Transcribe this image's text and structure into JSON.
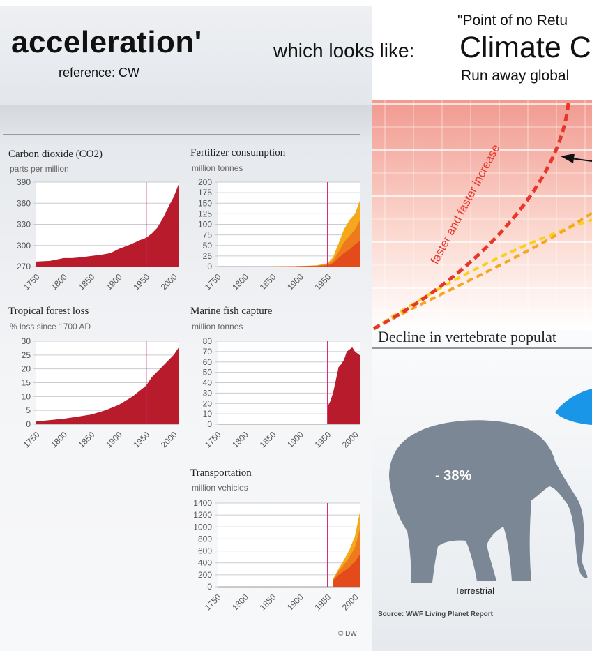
{
  "header": {
    "title": "acceleration'",
    "reference": "reference: CW",
    "looks_like": "which looks like:",
    "quote_line": "\"Point of no Retu",
    "climate_line": "Climate C",
    "runaway_line": "Run away global"
  },
  "chart_data": [
    {
      "type": "area",
      "title": "Carbon dioxide (CO2)",
      "unit": "parts per million",
      "x_ticks": [
        "1750",
        "1800",
        "1850",
        "1900",
        "1950",
        "2000"
      ],
      "y_ticks": [
        "270",
        "300",
        "330",
        "360",
        "390"
      ],
      "ylim": [
        270,
        390
      ],
      "xlim": [
        1750,
        2010
      ],
      "marker_year": 1950,
      "series": [
        {
          "x": [
            1750,
            1775,
            1800,
            1815,
            1830,
            1850,
            1870,
            1885,
            1900,
            1920,
            1940,
            1950,
            1960,
            1970,
            1980,
            1990,
            2000,
            2010
          ],
          "y": [
            277,
            278,
            282,
            282,
            283,
            285,
            287,
            289,
            295,
            301,
            308,
            311,
            317,
            325,
            338,
            354,
            369,
            389
          ]
        }
      ]
    },
    {
      "type": "area",
      "title": "Fertilizer consumption",
      "unit": "million tonnes",
      "x_ticks": [
        "1750",
        "1800",
        "1850",
        "1900",
        "1950"
      ],
      "y_ticks": [
        "0",
        "25",
        "50",
        "75",
        "100",
        "125",
        "150",
        "175",
        "200"
      ],
      "ylim": [
        0,
        200
      ],
      "xlim": [
        1750,
        2010
      ],
      "marker_year": 1950,
      "series": [
        {
          "x": [
            1750,
            1850,
            1900,
            1930,
            1950,
            1960,
            1970,
            1980,
            1990,
            2000,
            2010
          ],
          "y": [
            0,
            0,
            1,
            3,
            8,
            22,
            55,
            88,
            110,
            125,
            160
          ]
        },
        {
          "x": [
            1750,
            1850,
            1900,
            1930,
            1950,
            1960,
            1970,
            1980,
            1990,
            2000,
            2010
          ],
          "y": [
            0,
            0,
            1,
            2,
            5,
            14,
            35,
            58,
            72,
            88,
            112
          ]
        },
        {
          "x": [
            1750,
            1850,
            1900,
            1930,
            1950,
            1960,
            1970,
            1980,
            1990,
            2000,
            2010
          ],
          "y": [
            0,
            0,
            1,
            1,
            3,
            8,
            20,
            32,
            40,
            52,
            62
          ]
        }
      ]
    },
    {
      "type": "area",
      "title": "Tropical forest loss",
      "unit": "% loss since 1700 AD",
      "x_ticks": [
        "1750",
        "1800",
        "1850",
        "1900",
        "1950",
        "2000"
      ],
      "y_ticks": [
        "0",
        "5",
        "10",
        "15",
        "20",
        "25",
        "30"
      ],
      "ylim": [
        0,
        30
      ],
      "xlim": [
        1750,
        2010
      ],
      "marker_year": 1950,
      "series": [
        {
          "x": [
            1750,
            1775,
            1800,
            1825,
            1850,
            1875,
            1900,
            1925,
            1950,
            1960,
            1970,
            1980,
            1990,
            2000,
            2010
          ],
          "y": [
            1,
            1.5,
            2,
            2.7,
            3.5,
            5,
            7,
            10,
            14,
            17,
            19,
            21,
            23,
            25,
            28
          ]
        }
      ]
    },
    {
      "type": "area",
      "title": "Marine fish capture",
      "unit": "million tonnes",
      "x_ticks": [
        "1750",
        "1800",
        "1850",
        "1900",
        "1950",
        "2000"
      ],
      "y_ticks": [
        "0",
        "10",
        "20",
        "30",
        "40",
        "50",
        "60",
        "70",
        "80"
      ],
      "ylim": [
        0,
        80
      ],
      "xlim": [
        1750,
        2010
      ],
      "marker_year": 1950,
      "series": [
        {
          "x": [
            1950,
            1955,
            1960,
            1965,
            1970,
            1975,
            1980,
            1985,
            1990,
            1995,
            2000,
            2005,
            2010
          ],
          "y": [
            17,
            22,
            30,
            42,
            55,
            58,
            62,
            70,
            72,
            74,
            70,
            68,
            66
          ]
        }
      ]
    },
    {
      "type": "area",
      "title": "Transportation",
      "unit": "million vehicles",
      "x_ticks": [
        "1750",
        "1800",
        "1850",
        "1900",
        "1950",
        "2000"
      ],
      "y_ticks": [
        "0",
        "200",
        "400",
        "600",
        "800",
        "1000",
        "1200",
        "1400"
      ],
      "ylim": [
        0,
        1400
      ],
      "xlim": [
        1750,
        2010
      ],
      "marker_year": 1950,
      "series": [
        {
          "x": [
            1960,
            1970,
            1980,
            1990,
            2000,
            2010
          ],
          "y": [
            130,
            300,
            450,
            620,
            850,
            1300
          ]
        },
        {
          "x": [
            1960,
            1970,
            1980,
            1990,
            2000,
            2010
          ],
          "y": [
            120,
            260,
            370,
            500,
            660,
            1000
          ]
        },
        {
          "x": [
            1960,
            1970,
            1980,
            1990,
            2000,
            2010
          ],
          "y": [
            100,
            200,
            260,
            330,
            420,
            560
          ]
        }
      ]
    }
  ],
  "credit": "© DW",
  "climate_curve": {
    "label": "faster and faster increase"
  },
  "decline": {
    "title": "Decline in vertebrate populat",
    "percent": "- 38%",
    "category": "Terrestrial",
    "source": "Source: WWF Living Planet Report"
  },
  "colors": {
    "crimson": "#b81c2c",
    "orange": "#f29120",
    "dark_orange": "#e04e1c",
    "marker": "#d6246e",
    "climate_red": "#e8362a",
    "climate_orange": "#f5a623",
    "climate_yellow": "#f7d21a",
    "elephant": "#7b8794",
    "fish_blue": "#1996e8"
  }
}
